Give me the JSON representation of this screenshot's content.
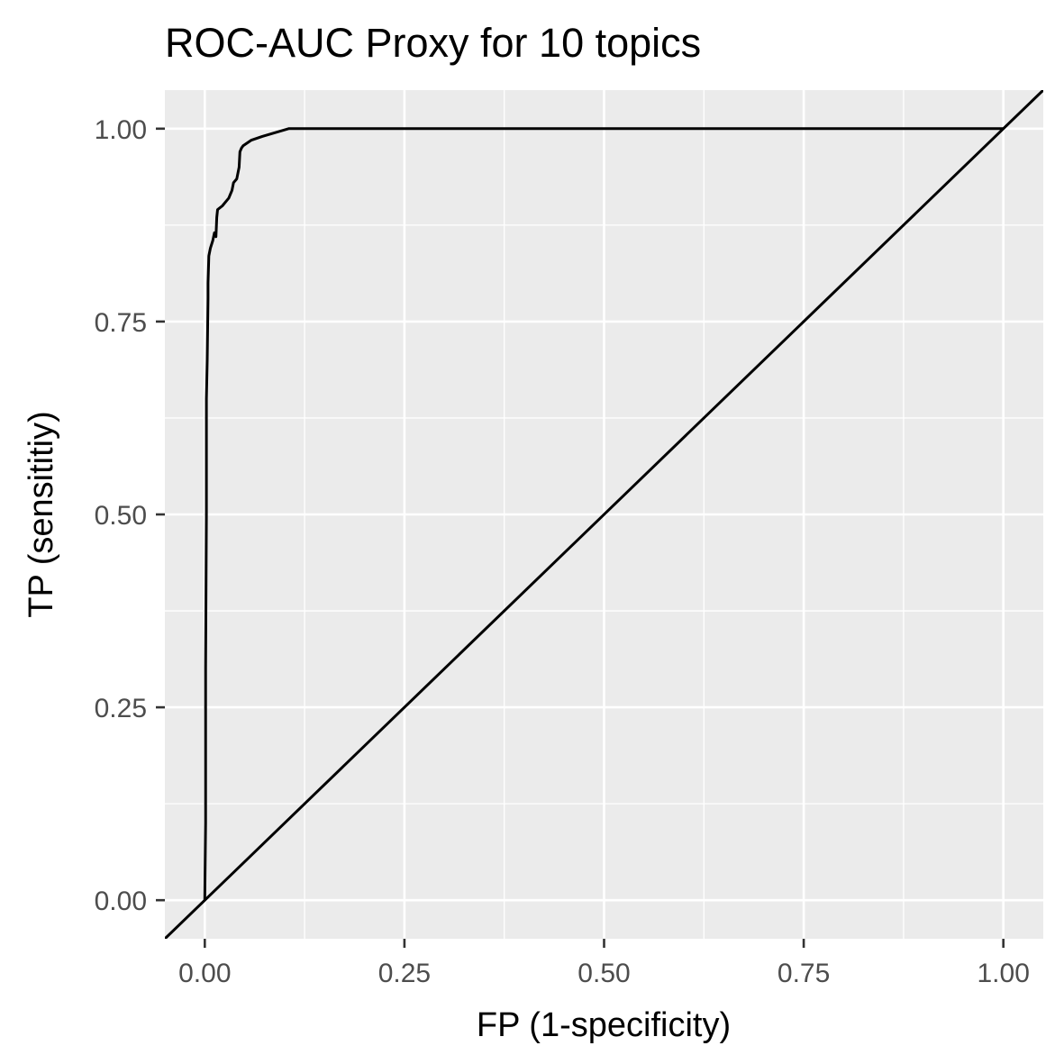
{
  "chart_data": {
    "type": "line",
    "title": "ROC-AUC Proxy for 10 topics",
    "xlabel": "FP (1-specificity)",
    "ylabel": "TP (sensititiy)",
    "xlim": [
      -0.05,
      1.05
    ],
    "ylim": [
      -0.05,
      1.05
    ],
    "x_ticks": [
      0,
      0.25,
      0.5,
      0.75,
      1
    ],
    "y_ticks": [
      0,
      0.25,
      0.5,
      0.75,
      1
    ],
    "x_tick_labels": [
      "0.00",
      "0.25",
      "0.50",
      "0.75",
      "1.00"
    ],
    "y_tick_labels": [
      "0.00",
      "0.25",
      "0.50",
      "0.75",
      "1.00"
    ],
    "grid": true,
    "legend": "none",
    "series": [
      {
        "color": "#000000",
        "x": [
          0,
          0.001,
          0.001,
          0.002,
          0.002,
          0.003,
          0.004,
          0.004,
          0.005,
          0.007,
          0.01,
          0.012,
          0.014,
          0.015,
          0.016,
          0.022,
          0.03,
          0.034,
          0.036,
          0.04,
          0.043,
          0.044,
          0.046,
          0.048,
          0.058,
          0.072,
          0.105,
          1.0
        ],
        "y": [
          0,
          0.1,
          0.3,
          0.5,
          0.65,
          0.7,
          0.78,
          0.8,
          0.835,
          0.845,
          0.855,
          0.865,
          0.86,
          0.885,
          0.895,
          0.9,
          0.91,
          0.92,
          0.93,
          0.935,
          0.95,
          0.97,
          0.975,
          0.978,
          0.985,
          0.99,
          1.0,
          1.0
        ]
      },
      {
        "color": "#000000",
        "type": "abline",
        "slope": 1,
        "intercept": 0
      }
    ]
  }
}
